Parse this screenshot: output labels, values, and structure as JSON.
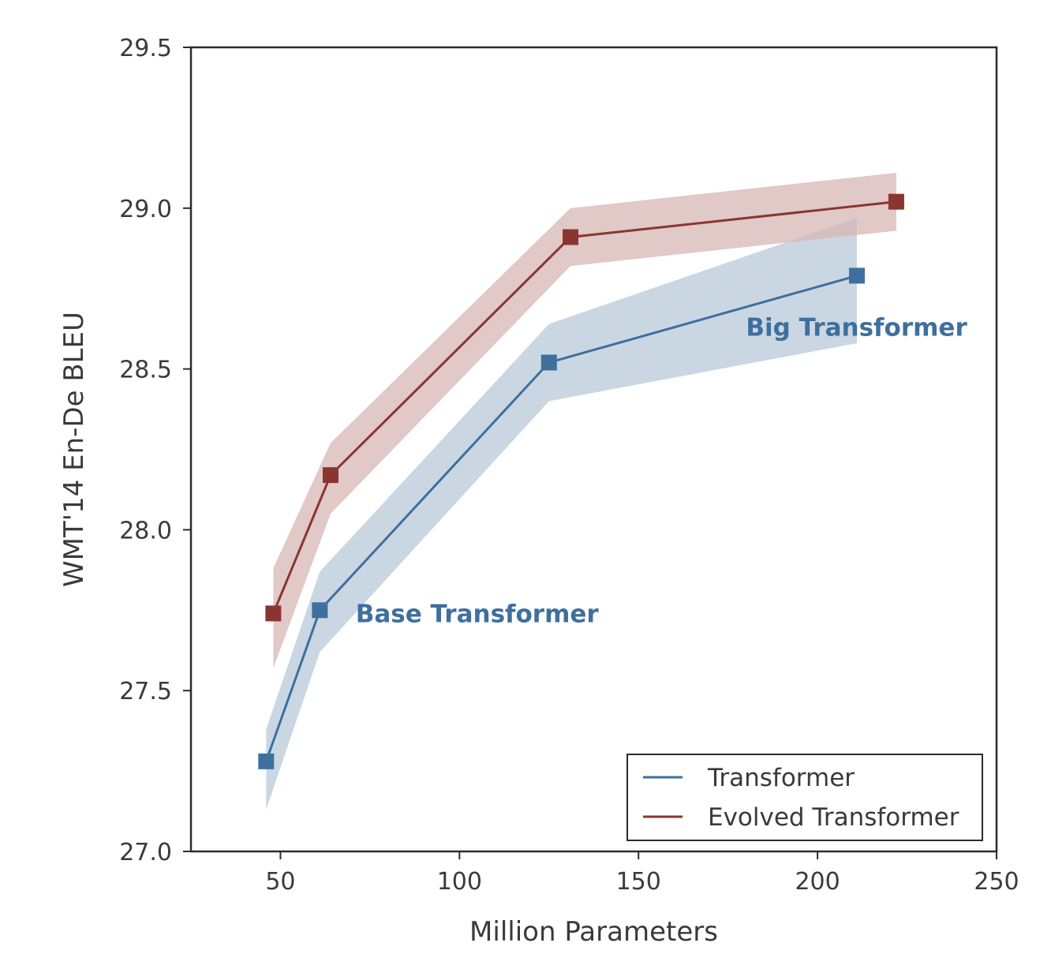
{
  "chart_data": {
    "type": "line",
    "title": "",
    "xlabel": "Million Parameters",
    "ylabel": "WMT'14 En-De BLEU",
    "xlim": [
      25,
      250
    ],
    "ylim": [
      27.0,
      29.5
    ],
    "xticks": [
      50,
      100,
      150,
      200,
      250
    ],
    "yticks": [
      27.0,
      27.5,
      28.0,
      28.5,
      29.0,
      29.5
    ],
    "xtick_labels": [
      "50",
      "100",
      "150",
      "200",
      "250"
    ],
    "ytick_labels": [
      "27.0",
      "27.5",
      "28.0",
      "28.5",
      "29.0",
      "29.5"
    ],
    "grid": false,
    "legend_position": "lower-right",
    "series": [
      {
        "name": "Transformer",
        "color": "#3e6f9e",
        "band_color": "#b8cad9",
        "marker": "square",
        "x": [
          46,
          61,
          125,
          211
        ],
        "y": [
          27.28,
          27.75,
          28.52,
          28.79
        ],
        "lower": [
          27.13,
          27.62,
          28.4,
          28.58
        ],
        "upper": [
          27.38,
          27.87,
          28.64,
          28.97
        ]
      },
      {
        "name": "Evolved Transformer",
        "color": "#8b3530",
        "band_color": "#d7b7b4",
        "marker": "square",
        "x": [
          48,
          64,
          131,
          222
        ],
        "y": [
          27.74,
          28.17,
          28.91,
          29.02
        ],
        "lower": [
          27.57,
          28.05,
          28.82,
          28.93
        ],
        "upper": [
          27.88,
          28.27,
          29.0,
          29.11
        ]
      }
    ],
    "annotations": [
      {
        "text": "Base Transformer",
        "x": 71,
        "y": 27.74,
        "color": "#3e6f9e"
      },
      {
        "text": "Big Transformer",
        "x": 180,
        "y": 28.63,
        "color": "#3e6f9e"
      }
    ]
  }
}
